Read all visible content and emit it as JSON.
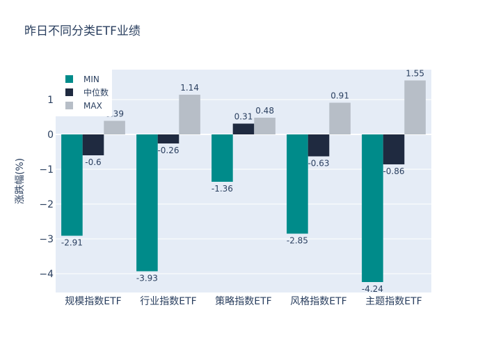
{
  "chart_data": {
    "type": "bar",
    "title": "昨日不同分类ETF业绩",
    "xlabel": "",
    "ylabel": "涨跌幅(%)",
    "ylim": [
      -4.54,
      1.86
    ],
    "yticks": [
      1,
      0,
      -1,
      -2,
      -3,
      -4
    ],
    "ytick_labels": [
      "1",
      "0",
      "−1",
      "−2",
      "−3",
      "−4"
    ],
    "grid": true,
    "legend_position": "top-left",
    "categories": [
      "规模指数ETF",
      "行业指数ETF",
      "策略指数ETF",
      "风格指数ETF",
      "主题指数ETF"
    ],
    "series": [
      {
        "name": "MIN",
        "color": "#008b8a",
        "values": [
          -2.91,
          -3.93,
          -1.36,
          -2.85,
          -4.24
        ]
      },
      {
        "name": "中位数",
        "color": "#1f2a40",
        "values": [
          -0.6,
          -0.26,
          0.31,
          -0.63,
          -0.86
        ]
      },
      {
        "name": "MAX",
        "color": "#b7bec7",
        "values": [
          0.39,
          1.14,
          0.48,
          0.91,
          1.55
        ]
      }
    ]
  }
}
